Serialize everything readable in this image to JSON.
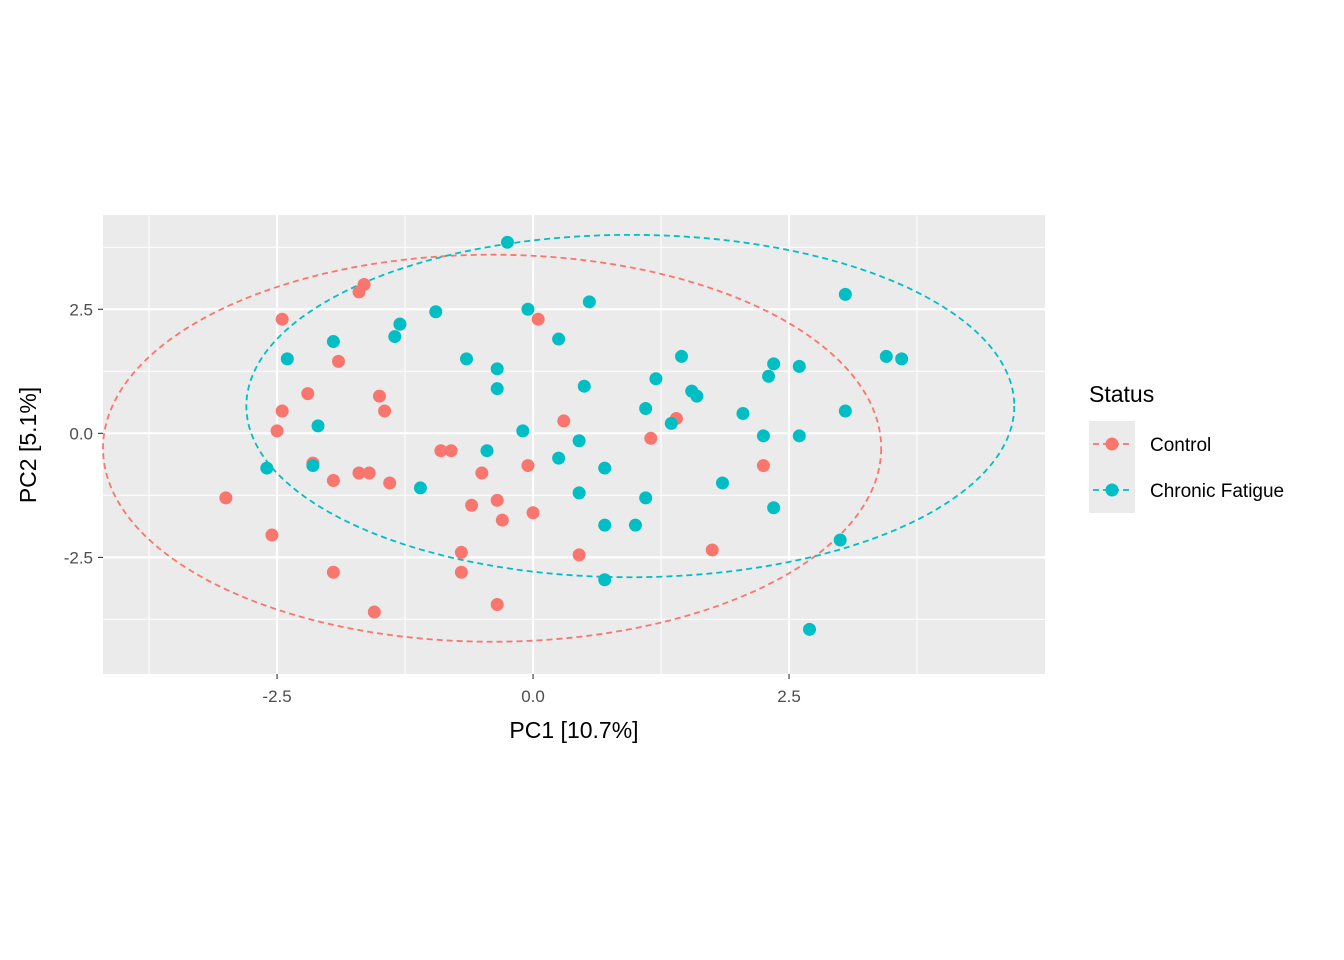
{
  "chart_data": {
    "type": "scatter",
    "title": "",
    "xlabel": "PC1   [10.7%]",
    "ylabel": "PC2   [5.1%]",
    "xlim": [
      -4.2,
      5.0
    ],
    "ylim": [
      -4.85,
      4.4
    ],
    "x_ticks": [
      -2.5,
      0.0,
      2.5
    ],
    "x_tick_labels": [
      "-2.5",
      "0.0",
      "2.5"
    ],
    "y_ticks": [
      -2.5,
      0.0,
      2.5
    ],
    "y_tick_labels": [
      "-2.5",
      "0.0",
      "2.5"
    ],
    "grid": true,
    "legend": {
      "title": "Status",
      "position": "right"
    },
    "ellipses": [
      {
        "series": "Control",
        "center": [
          -0.4,
          -0.3
        ],
        "rx": 3.8,
        "ry": 3.9,
        "style": "dashed"
      },
      {
        "series": "Chronic Fatigue",
        "center": [
          0.95,
          0.55
        ],
        "rx": 3.75,
        "ry": 3.45,
        "style": "dashed"
      }
    ],
    "series": [
      {
        "name": "Control",
        "color": "#F8766D",
        "points": [
          [
            -1.65,
            3.0
          ],
          [
            -1.7,
            2.85
          ],
          [
            -2.45,
            2.3
          ],
          [
            -1.3,
            2.2
          ],
          [
            0.05,
            2.3
          ],
          [
            -1.9,
            1.45
          ],
          [
            -2.2,
            0.8
          ],
          [
            -1.5,
            0.75
          ],
          [
            -1.45,
            0.45
          ],
          [
            -2.45,
            0.45
          ],
          [
            -2.5,
            0.05
          ],
          [
            0.3,
            0.25
          ],
          [
            1.4,
            0.3
          ],
          [
            1.15,
            -0.1
          ],
          [
            -0.9,
            -0.35
          ],
          [
            -0.8,
            -0.35
          ],
          [
            -2.15,
            -0.6
          ],
          [
            -0.05,
            -0.65
          ],
          [
            -1.7,
            -0.8
          ],
          [
            -1.6,
            -0.8
          ],
          [
            -0.5,
            -0.8
          ],
          [
            2.25,
            -0.65
          ],
          [
            -1.95,
            -0.95
          ],
          [
            -1.4,
            -1.0
          ],
          [
            -3.0,
            -1.3
          ],
          [
            -0.6,
            -1.45
          ],
          [
            -0.35,
            -1.35
          ],
          [
            0.0,
            -1.6
          ],
          [
            -0.3,
            -1.75
          ],
          [
            -2.55,
            -2.05
          ],
          [
            -0.7,
            -2.4
          ],
          [
            0.45,
            -2.45
          ],
          [
            1.75,
            -2.35
          ],
          [
            -1.95,
            -2.8
          ],
          [
            -0.7,
            -2.8
          ],
          [
            -0.35,
            -3.45
          ],
          [
            -1.55,
            -3.6
          ]
        ]
      },
      {
        "name": "Chronic Fatigue",
        "color": "#00BFC4",
        "points": [
          [
            -0.25,
            3.85
          ],
          [
            0.55,
            2.65
          ],
          [
            3.05,
            2.8
          ],
          [
            -0.05,
            2.5
          ],
          [
            -0.95,
            2.45
          ],
          [
            -1.3,
            2.2
          ],
          [
            -1.35,
            1.95
          ],
          [
            0.25,
            1.9
          ],
          [
            -1.95,
            1.85
          ],
          [
            -2.4,
            1.5
          ],
          [
            -0.65,
            1.5
          ],
          [
            -0.35,
            1.3
          ],
          [
            1.45,
            1.55
          ],
          [
            3.45,
            1.55
          ],
          [
            3.6,
            1.5
          ],
          [
            2.35,
            1.4
          ],
          [
            2.6,
            1.35
          ],
          [
            2.3,
            1.15
          ],
          [
            1.2,
            1.1
          ],
          [
            0.5,
            0.95
          ],
          [
            -0.35,
            0.9
          ],
          [
            1.55,
            0.85
          ],
          [
            1.6,
            0.75
          ],
          [
            1.1,
            0.5
          ],
          [
            3.05,
            0.45
          ],
          [
            2.05,
            0.4
          ],
          [
            1.35,
            0.2
          ],
          [
            -2.1,
            0.15
          ],
          [
            -0.1,
            0.05
          ],
          [
            2.25,
            -0.05
          ],
          [
            2.6,
            -0.05
          ],
          [
            0.45,
            -0.15
          ],
          [
            -0.45,
            -0.35
          ],
          [
            0.25,
            -0.5
          ],
          [
            -2.15,
            -0.65
          ],
          [
            0.7,
            -0.7
          ],
          [
            -2.6,
            -0.7
          ],
          [
            1.85,
            -1.0
          ],
          [
            -1.1,
            -1.1
          ],
          [
            0.45,
            -1.2
          ],
          [
            1.1,
            -1.3
          ],
          [
            2.35,
            -1.5
          ],
          [
            0.7,
            -1.85
          ],
          [
            1.0,
            -1.85
          ],
          [
            3.0,
            -2.15
          ],
          [
            0.7,
            -2.95
          ],
          [
            2.7,
            -3.95
          ]
        ]
      }
    ]
  }
}
